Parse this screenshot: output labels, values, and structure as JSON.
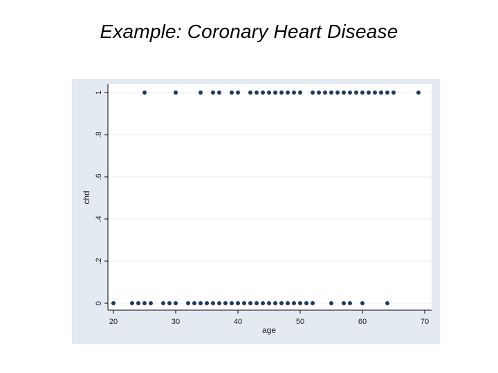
{
  "slide": {
    "title": "Example:  Coronary Heart Disease"
  },
  "colors": {
    "panel_bg": "#e4eaf2",
    "plot_bg": "#ffffff",
    "marker": "#1f3a5f",
    "grid": "#e9eef4"
  },
  "chart_data": {
    "type": "scatter",
    "title": "",
    "xlabel": "age",
    "ylabel": "chd",
    "xlim": [
      18,
      71
    ],
    "ylim": [
      0,
      1
    ],
    "x_ticks": [
      20,
      30,
      40,
      50,
      60,
      70
    ],
    "y_ticks": [
      0,
      0.2,
      0.4,
      0.6,
      0.8,
      1
    ],
    "y_tick_labels": [
      "0",
      ".2",
      ".4",
      ".6",
      ".8",
      "1"
    ],
    "grid": true,
    "points": [
      {
        "x": 20,
        "y": 0
      },
      {
        "x": 23,
        "y": 0
      },
      {
        "x": 24,
        "y": 0
      },
      {
        "x": 25,
        "y": 0
      },
      {
        "x": 26,
        "y": 0
      },
      {
        "x": 28,
        "y": 0
      },
      {
        "x": 29,
        "y": 0
      },
      {
        "x": 30,
        "y": 0
      },
      {
        "x": 32,
        "y": 0
      },
      {
        "x": 33,
        "y": 0
      },
      {
        "x": 34,
        "y": 0
      },
      {
        "x": 35,
        "y": 0
      },
      {
        "x": 36,
        "y": 0
      },
      {
        "x": 37,
        "y": 0
      },
      {
        "x": 38,
        "y": 0
      },
      {
        "x": 39,
        "y": 0
      },
      {
        "x": 40,
        "y": 0
      },
      {
        "x": 41,
        "y": 0
      },
      {
        "x": 42,
        "y": 0
      },
      {
        "x": 43,
        "y": 0
      },
      {
        "x": 44,
        "y": 0
      },
      {
        "x": 45,
        "y": 0
      },
      {
        "x": 46,
        "y": 0
      },
      {
        "x": 47,
        "y": 0
      },
      {
        "x": 48,
        "y": 0
      },
      {
        "x": 49,
        "y": 0
      },
      {
        "x": 50,
        "y": 0
      },
      {
        "x": 51,
        "y": 0
      },
      {
        "x": 52,
        "y": 0
      },
      {
        "x": 55,
        "y": 0
      },
      {
        "x": 57,
        "y": 0
      },
      {
        "x": 58,
        "y": 0
      },
      {
        "x": 60,
        "y": 0
      },
      {
        "x": 64,
        "y": 0
      },
      {
        "x": 25,
        "y": 1
      },
      {
        "x": 30,
        "y": 1
      },
      {
        "x": 34,
        "y": 1
      },
      {
        "x": 36,
        "y": 1
      },
      {
        "x": 37,
        "y": 1
      },
      {
        "x": 39,
        "y": 1
      },
      {
        "x": 40,
        "y": 1
      },
      {
        "x": 42,
        "y": 1
      },
      {
        "x": 43,
        "y": 1
      },
      {
        "x": 44,
        "y": 1
      },
      {
        "x": 45,
        "y": 1
      },
      {
        "x": 46,
        "y": 1
      },
      {
        "x": 47,
        "y": 1
      },
      {
        "x": 48,
        "y": 1
      },
      {
        "x": 49,
        "y": 1
      },
      {
        "x": 50,
        "y": 1
      },
      {
        "x": 52,
        "y": 1
      },
      {
        "x": 53,
        "y": 1
      },
      {
        "x": 54,
        "y": 1
      },
      {
        "x": 55,
        "y": 1
      },
      {
        "x": 56,
        "y": 1
      },
      {
        "x": 57,
        "y": 1
      },
      {
        "x": 58,
        "y": 1
      },
      {
        "x": 59,
        "y": 1
      },
      {
        "x": 60,
        "y": 1
      },
      {
        "x": 61,
        "y": 1
      },
      {
        "x": 62,
        "y": 1
      },
      {
        "x": 63,
        "y": 1
      },
      {
        "x": 64,
        "y": 1
      },
      {
        "x": 65,
        "y": 1
      },
      {
        "x": 69,
        "y": 1
      }
    ]
  }
}
